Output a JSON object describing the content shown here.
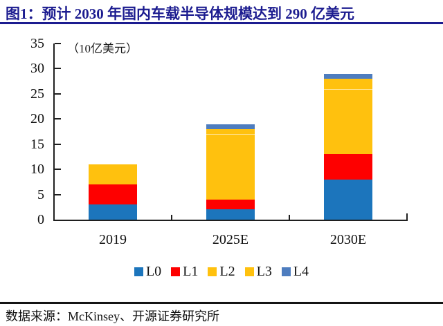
{
  "title": "图1：预计 2030 年国内车载半导体规模达到 290 亿美元",
  "footer": {
    "source": "数据来源：McKinsey、开源证券研究所"
  },
  "colors": {
    "title_navy": "#1c1c90",
    "axis_line": "#1f1f1f",
    "footer_rule": "#141414"
  },
  "chart_data": {
    "type": "bar",
    "stacked": true,
    "title": "预计 2030 年国内车载半导体规模达到 290 亿美元",
    "unit_label": "（10亿美元）",
    "categories": [
      "2019",
      "2025E",
      "2030E"
    ],
    "series": [
      {
        "name": "L0",
        "color": "#1C75BC",
        "values": [
          3,
          2,
          8
        ]
      },
      {
        "name": "L1",
        "color": "#FE0000",
        "values": [
          4,
          2,
          5
        ]
      },
      {
        "name": "L2",
        "color": "#FFC10E",
        "values": [
          4,
          13,
          13
        ]
      },
      {
        "name": "L3",
        "color": "#FFC10E",
        "values": [
          0,
          1,
          2
        ]
      },
      {
        "name": "L4",
        "color": "#4E7DBF",
        "values": [
          0,
          1,
          1
        ]
      }
    ],
    "ylim": [
      0,
      35
    ],
    "yticks": [
      0,
      5,
      10,
      15,
      20,
      25,
      30,
      35
    ],
    "grid": false,
    "legend_position": "bottom"
  }
}
